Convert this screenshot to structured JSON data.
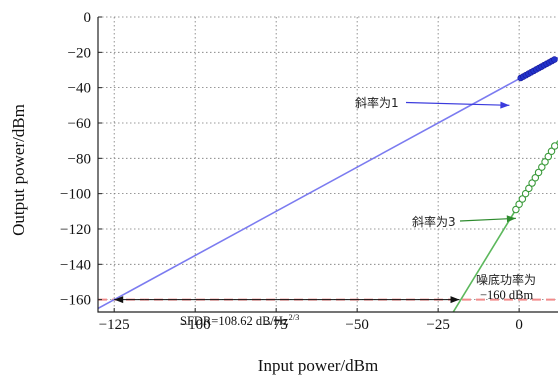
{
  "chart_data": {
    "type": "line",
    "title": "",
    "xlabel": "Input power/dBm",
    "ylabel": "Output power/dBm",
    "xlim": [
      -130,
      12
    ],
    "ylim": [
      -167,
      0
    ],
    "xticks": [
      -125,
      -100,
      -75,
      -50,
      -25,
      0
    ],
    "xtick_labels": [
      "−125",
      "−100",
      "−75",
      "−50",
      "−25",
      "0"
    ],
    "yticks": [
      0,
      -20,
      -40,
      -60,
      -80,
      -100,
      -120,
      -140,
      -160
    ],
    "ytick_labels": [
      "0",
      "−20",
      "−40",
      "−60",
      "−80",
      "−100",
      "−120",
      "−140",
      "−160"
    ],
    "grid": true,
    "series": [
      {
        "name": "",
        "color": "#7b7bf0",
        "line": {
          "x": [
            -130,
            12
          ],
          "y": [
            -165,
            -23
          ]
        },
        "points": {
          "x": [
            0.5,
            1.3,
            2.1,
            2.9,
            3.7,
            4.5,
            5.3,
            6.1,
            6.9,
            7.7,
            8.5,
            9.3,
            10.1,
            10.9
          ],
          "y": [
            -34.5,
            -33.7,
            -32.9,
            -32.1,
            -31.3,
            -30.5,
            -29.7,
            -28.9,
            -28.1,
            -27.3,
            -26.5,
            -25.7,
            -24.9,
            -24.1
          ]
        }
      },
      {
        "name": "",
        "color": "#5cb85c",
        "line": {
          "x": [
            -22,
            12
          ],
          "y": [
            -172,
            -70
          ]
        },
        "points": {
          "x": [
            -1,
            0,
            1,
            2,
            3,
            4,
            5,
            6,
            7,
            8,
            9,
            10,
            11
          ],
          "y": [
            -109,
            -106,
            -103,
            -100,
            -97,
            -94,
            -91,
            -88,
            -85,
            -82,
            -79,
            -76,
            -73
          ]
        }
      }
    ],
    "noise_floor": {
      "y": -160,
      "color": "#f28b8b"
    },
    "sfdr_arrow": {
      "x1": -125,
      "x2": -18.4,
      "y": -160
    },
    "annotations": {
      "slope1": {
        "label": "斜率为1",
        "arrow_to": [
          -3,
          -50
        ]
      },
      "slope3": {
        "label": "斜率为3",
        "arrow_to": [
          -1,
          -114
        ]
      },
      "noise_line1": "噪底功率为",
      "noise_line2": "−160 dBm",
      "sfdr_prefix": "SFDR=108.62 dB/Hz",
      "sfdr_exp": "2/3"
    }
  }
}
